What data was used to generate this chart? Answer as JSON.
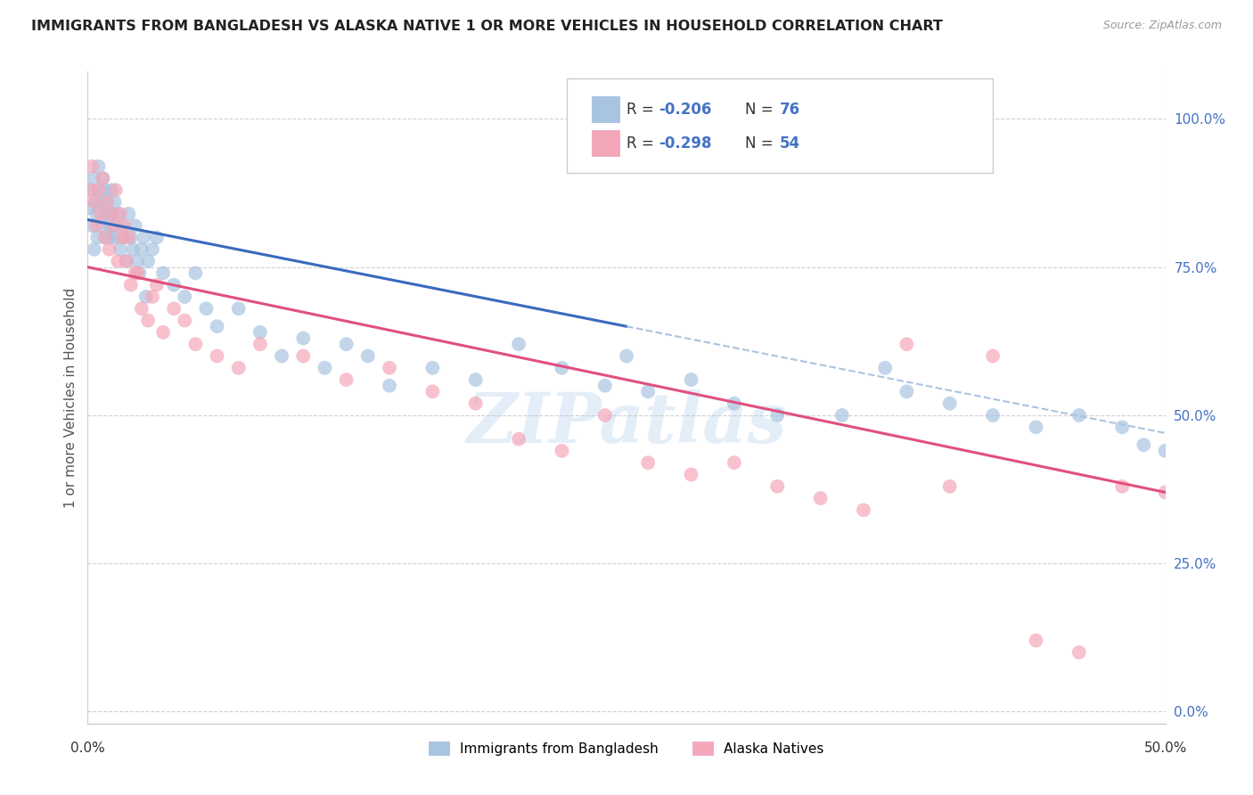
{
  "title": "IMMIGRANTS FROM BANGLADESH VS ALASKA NATIVE 1 OR MORE VEHICLES IN HOUSEHOLD CORRELATION CHART",
  "source": "Source: ZipAtlas.com",
  "ylabel": "1 or more Vehicles in Household",
  "ytick_values": [
    0,
    25,
    50,
    75,
    100
  ],
  "xlim": [
    0,
    50
  ],
  "ylim": [
    -2,
    108
  ],
  "legend_label1": "Immigrants from Bangladesh",
  "legend_label2": "Alaska Natives",
  "R1": -0.206,
  "N1": 76,
  "R2": -0.298,
  "N2": 54,
  "color_blue": "#a8c4e0",
  "color_pink": "#f4a7b9",
  "line_color_blue": "#3a6abf",
  "line_color_pink": "#e05080",
  "line_color_dashed": "#aac4e0",
  "watermark": "ZIPatlas",
  "blue_line_x0": 0,
  "blue_line_y0": 83,
  "blue_line_x1": 25,
  "blue_line_y1": 65,
  "blue_dash_x0": 25,
  "blue_dash_y0": 65,
  "blue_dash_x1": 50,
  "blue_dash_y1": 47,
  "pink_line_x0": 0,
  "pink_line_y0": 75,
  "pink_line_x1": 50,
  "pink_line_y1": 37,
  "blue_x": [
    0.1,
    0.15,
    0.2,
    0.25,
    0.3,
    0.35,
    0.4,
    0.45,
    0.5,
    0.55,
    0.6,
    0.65,
    0.7,
    0.75,
    0.8,
    0.85,
    0.9,
    0.95,
    1.0,
    1.05,
    1.1,
    1.15,
    1.2,
    1.25,
    1.3,
    1.4,
    1.5,
    1.6,
    1.7,
    1.8,
    1.9,
    2.0,
    2.1,
    2.2,
    2.3,
    2.5,
    2.6,
    2.8,
    3.0,
    3.2,
    3.5,
    4.0,
    4.5,
    5.0,
    5.5,
    6.0,
    7.0,
    8.0,
    9.0,
    10.0,
    11.0,
    12.0,
    13.0,
    14.0,
    16.0,
    18.0,
    20.0,
    22.0,
    24.0,
    25.0,
    26.0,
    28.0,
    30.0,
    32.0,
    35.0,
    37.0,
    38.0,
    40.0,
    42.0,
    44.0,
    46.0,
    48.0,
    49.0,
    50.0,
    2.4,
    2.7
  ],
  "blue_y": [
    85,
    88,
    82,
    90,
    78,
    86,
    84,
    80,
    92,
    88,
    86,
    82,
    90,
    84,
    88,
    80,
    86,
    84,
    82,
    80,
    88,
    84,
    82,
    86,
    80,
    84,
    78,
    82,
    80,
    76,
    84,
    80,
    78,
    82,
    76,
    78,
    80,
    76,
    78,
    80,
    74,
    72,
    70,
    74,
    68,
    65,
    68,
    64,
    60,
    63,
    58,
    62,
    60,
    55,
    58,
    56,
    62,
    58,
    55,
    60,
    54,
    56,
    52,
    50,
    50,
    58,
    54,
    52,
    50,
    48,
    50,
    48,
    45,
    44,
    74,
    70
  ],
  "pink_x": [
    0.1,
    0.2,
    0.3,
    0.4,
    0.5,
    0.6,
    0.7,
    0.8,
    0.9,
    1.0,
    1.1,
    1.2,
    1.3,
    1.4,
    1.5,
    1.6,
    1.7,
    1.8,
    1.9,
    2.0,
    2.2,
    2.5,
    2.8,
    3.0,
    3.5,
    4.0,
    4.5,
    5.0,
    6.0,
    7.0,
    8.0,
    10.0,
    12.0,
    14.0,
    16.0,
    18.0,
    20.0,
    22.0,
    24.0,
    26.0,
    28.0,
    30.0,
    32.0,
    34.0,
    36.0,
    38.0,
    40.0,
    42.0,
    44.0,
    46.0,
    48.0,
    50.0,
    3.2,
    2.3
  ],
  "pink_y": [
    88,
    92,
    86,
    82,
    88,
    84,
    90,
    80,
    86,
    78,
    84,
    82,
    88,
    76,
    84,
    80,
    82,
    76,
    80,
    72,
    74,
    68,
    66,
    70,
    64,
    68,
    66,
    62,
    60,
    58,
    62,
    60,
    56,
    58,
    54,
    52,
    46,
    44,
    50,
    42,
    40,
    42,
    38,
    36,
    34,
    62,
    38,
    60,
    12,
    10,
    38,
    37,
    72,
    74
  ]
}
